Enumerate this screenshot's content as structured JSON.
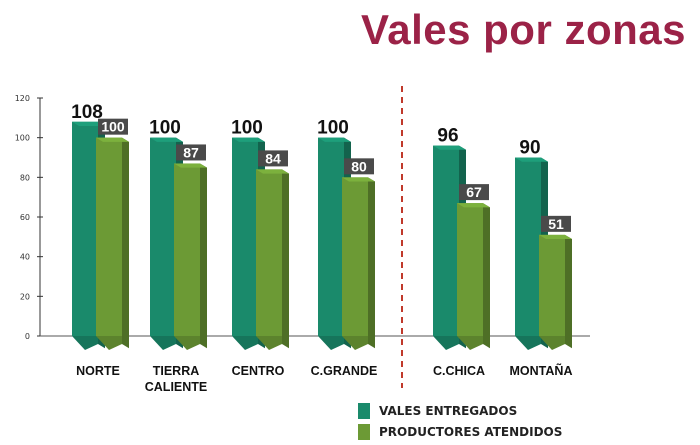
{
  "title": "Vales por zonas",
  "colors": {
    "title": "#9b2247",
    "series_0": "#1a8a6b",
    "series_1": "#6c9a35",
    "value_box": "#4a4a4a",
    "separator": "#c0392b"
  },
  "chart_data": {
    "type": "bar",
    "categories": [
      "NORTE",
      "TIERRA CALIENTE",
      "CENTRO",
      "C.GRANDE",
      "C.CHICA",
      "MONTAÑA"
    ],
    "series": [
      {
        "name": "VALES ENTREGADOS",
        "values": [
          108,
          100,
          100,
          100,
          96,
          90
        ]
      },
      {
        "name": "PRODUCTORES ATENDIDOS",
        "values": [
          100,
          87,
          84,
          80,
          67,
          51
        ]
      }
    ],
    "ylim": [
      0,
      120
    ],
    "yticks": [
      "0",
      "20",
      "40",
      "60",
      "80",
      "100",
      "120"
    ],
    "legend_position": "bottom",
    "separator_after_category": 3
  },
  "legend": [
    {
      "label": "VALES ENTREGADOS"
    },
    {
      "label": "PRODUCTORES ATENDIDOS"
    }
  ]
}
